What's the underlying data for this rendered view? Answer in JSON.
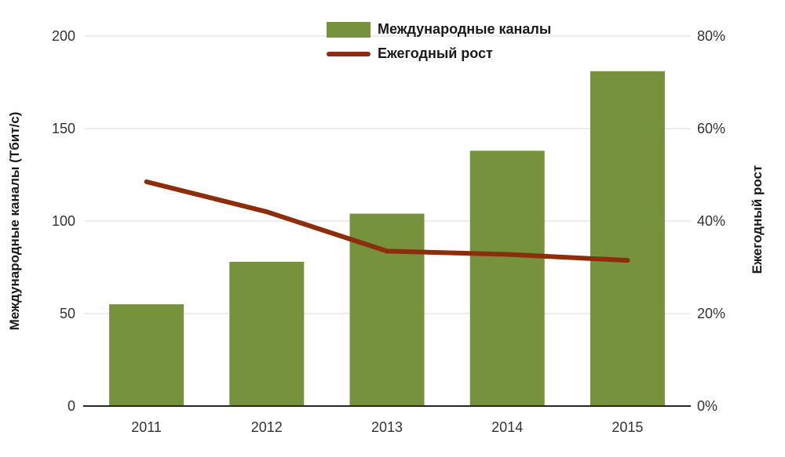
{
  "chart_data": {
    "type": "bar+line",
    "title": "",
    "categories": [
      "2011",
      "2012",
      "2013",
      "2014",
      "2015"
    ],
    "series": [
      {
        "name": "Международные каналы",
        "type": "bar",
        "axis": "left",
        "values": [
          55,
          78,
          104,
          138,
          181
        ],
        "color": "#76923C"
      },
      {
        "name": "Ежегодный рост",
        "type": "line",
        "axis": "right",
        "values": [
          48.5,
          42,
          33.5,
          32.8,
          31.5
        ],
        "color": "#8C2D0B"
      }
    ],
    "left_axis": {
      "label": "Международные каналы (Тбит/с)",
      "min": 0,
      "max": 200,
      "step": 50,
      "ticks": [
        "0",
        "50",
        "100",
        "150",
        "200"
      ]
    },
    "right_axis": {
      "label": "Ежегодный рост",
      "min": 0,
      "max": 80,
      "step": 20,
      "ticks": [
        "0%",
        "20%",
        "40%",
        "60%",
        "80%"
      ]
    },
    "grid": true,
    "legend_position": "top-center"
  },
  "colors": {
    "bar": "#76923C",
    "line": "#8C2D0B",
    "grid": "#D9D9D9",
    "axis_line": "#262626",
    "tick_text": "#333333"
  }
}
